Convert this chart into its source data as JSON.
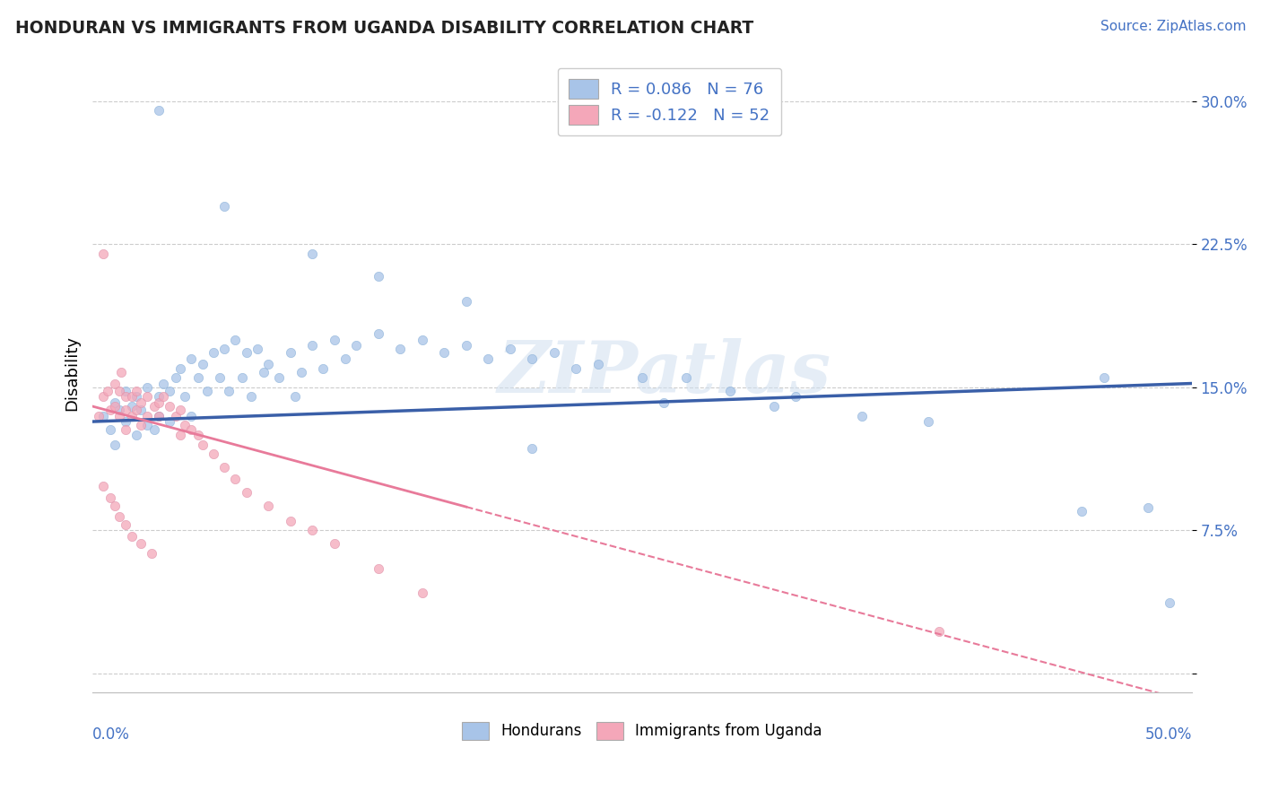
{
  "title": "HONDURAN VS IMMIGRANTS FROM UGANDA DISABILITY CORRELATION CHART",
  "source": "Source: ZipAtlas.com",
  "ylabel": "Disability",
  "yticks": [
    0.0,
    0.075,
    0.15,
    0.225,
    0.3
  ],
  "ytick_labels": [
    "",
    "7.5%",
    "15.0%",
    "22.5%",
    "30.0%"
  ],
  "xlim": [
    0.0,
    0.5
  ],
  "ylim": [
    -0.01,
    0.325
  ],
  "legend_r1": "R = 0.086   N = 76",
  "legend_r2": "R = -0.122   N = 52",
  "blue_color": "#a8c4e8",
  "pink_color": "#f4a7b9",
  "blue_line_color": "#3a5fa8",
  "pink_line_color": "#e87a9a",
  "watermark": "ZIPatlas",
  "hon_x": [
    0.005,
    0.008,
    0.01,
    0.01,
    0.012,
    0.015,
    0.015,
    0.018,
    0.02,
    0.02,
    0.022,
    0.025,
    0.025,
    0.028,
    0.03,
    0.03,
    0.032,
    0.035,
    0.035,
    0.038,
    0.04,
    0.042,
    0.045,
    0.045,
    0.048,
    0.05,
    0.052,
    0.055,
    0.058,
    0.06,
    0.062,
    0.065,
    0.068,
    0.07,
    0.072,
    0.075,
    0.078,
    0.08,
    0.085,
    0.09,
    0.092,
    0.095,
    0.1,
    0.105,
    0.11,
    0.115,
    0.12,
    0.13,
    0.14,
    0.15,
    0.16,
    0.17,
    0.18,
    0.19,
    0.2,
    0.21,
    0.22,
    0.23,
    0.25,
    0.27,
    0.29,
    0.32,
    0.35,
    0.03,
    0.06,
    0.1,
    0.13,
    0.17,
    0.2,
    0.26,
    0.31,
    0.38,
    0.45,
    0.46,
    0.48,
    0.49
  ],
  "hon_y": [
    0.135,
    0.128,
    0.142,
    0.12,
    0.138,
    0.132,
    0.148,
    0.14,
    0.125,
    0.145,
    0.138,
    0.13,
    0.15,
    0.128,
    0.145,
    0.135,
    0.152,
    0.148,
    0.132,
    0.155,
    0.16,
    0.145,
    0.165,
    0.135,
    0.155,
    0.162,
    0.148,
    0.168,
    0.155,
    0.17,
    0.148,
    0.175,
    0.155,
    0.168,
    0.145,
    0.17,
    0.158,
    0.162,
    0.155,
    0.168,
    0.145,
    0.158,
    0.172,
    0.16,
    0.175,
    0.165,
    0.172,
    0.178,
    0.17,
    0.175,
    0.168,
    0.172,
    0.165,
    0.17,
    0.165,
    0.168,
    0.16,
    0.162,
    0.155,
    0.155,
    0.148,
    0.145,
    0.135,
    0.295,
    0.245,
    0.22,
    0.208,
    0.195,
    0.118,
    0.142,
    0.14,
    0.132,
    0.085,
    0.155,
    0.087,
    0.037
  ],
  "uga_x": [
    0.003,
    0.005,
    0.005,
    0.007,
    0.008,
    0.01,
    0.01,
    0.012,
    0.012,
    0.013,
    0.015,
    0.015,
    0.015,
    0.018,
    0.018,
    0.02,
    0.02,
    0.022,
    0.022,
    0.025,
    0.025,
    0.028,
    0.03,
    0.03,
    0.032,
    0.035,
    0.038,
    0.04,
    0.04,
    0.042,
    0.045,
    0.048,
    0.05,
    0.055,
    0.06,
    0.065,
    0.07,
    0.08,
    0.09,
    0.1,
    0.11,
    0.13,
    0.15,
    0.005,
    0.008,
    0.01,
    0.012,
    0.015,
    0.018,
    0.022,
    0.027,
    0.385
  ],
  "uga_y": [
    0.135,
    0.22,
    0.145,
    0.148,
    0.138,
    0.152,
    0.14,
    0.148,
    0.135,
    0.158,
    0.145,
    0.138,
    0.128,
    0.145,
    0.135,
    0.148,
    0.138,
    0.142,
    0.13,
    0.145,
    0.135,
    0.14,
    0.142,
    0.135,
    0.145,
    0.14,
    0.135,
    0.138,
    0.125,
    0.13,
    0.128,
    0.125,
    0.12,
    0.115,
    0.108,
    0.102,
    0.095,
    0.088,
    0.08,
    0.075,
    0.068,
    0.055,
    0.042,
    0.098,
    0.092,
    0.088,
    0.082,
    0.078,
    0.072,
    0.068,
    0.063,
    0.022
  ],
  "hon_trend_x": [
    0.0,
    0.5
  ],
  "hon_trend_y": [
    0.132,
    0.152
  ],
  "uga_trend_x": [
    0.0,
    0.5
  ],
  "uga_trend_y": [
    0.14,
    -0.015
  ]
}
